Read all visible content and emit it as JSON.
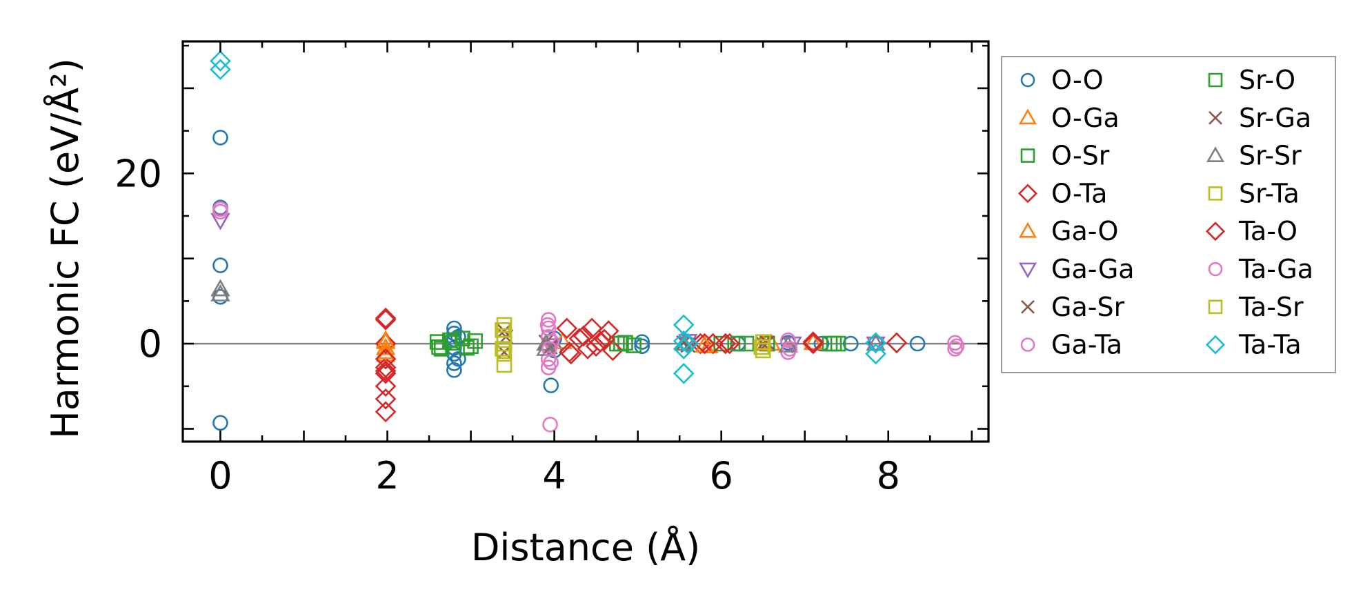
{
  "chart_data": {
    "type": "scatter",
    "title": "",
    "xlabel": "Distance (Å)",
    "ylabel": "Harmonic FC (eV/Å²)",
    "xlim": [
      -0.45,
      9.2
    ],
    "ylim": [
      -11.5,
      35.5
    ],
    "xticks": [
      0,
      2,
      4,
      6,
      8
    ],
    "yticks": [
      0,
      20
    ],
    "x_minor_step": 0.5,
    "y_minor_step": 5,
    "grid": false,
    "zero_line": true,
    "legend_position": "outside-right",
    "legend_columns": 2,
    "series": [
      {
        "name": "O-O",
        "marker": "circle",
        "color": "#1f77b4",
        "points": [
          [
            0,
            24.2
          ],
          [
            0,
            16
          ],
          [
            0,
            9.2
          ],
          [
            0,
            5.5
          ],
          [
            0,
            -9.3
          ],
          [
            2.8,
            1.8
          ],
          [
            2.8,
            1.2
          ],
          [
            2.8,
            0.5
          ],
          [
            2.8,
            -0.5
          ],
          [
            2.8,
            -1.2
          ],
          [
            2.8,
            -2.3
          ],
          [
            2.8,
            -3.1
          ],
          [
            2.85,
            0.8
          ],
          [
            2.85,
            -1.8
          ],
          [
            3.96,
            -4.9
          ],
          [
            4.0,
            0.6
          ],
          [
            4.0,
            -0.8
          ],
          [
            5.05,
            0.2
          ],
          [
            5.05,
            -0.3
          ],
          [
            5.6,
            0
          ],
          [
            6.2,
            0
          ],
          [
            6.8,
            0.1
          ],
          [
            7.2,
            0
          ],
          [
            7.55,
            0
          ],
          [
            7.85,
            0
          ],
          [
            8.35,
            0
          ]
        ]
      },
      {
        "name": "O-Ga",
        "marker": "triangle-up",
        "color": "#ff7f0e",
        "points": [
          [
            1.98,
            0.4
          ],
          [
            1.98,
            -0.5
          ],
          [
            1.98,
            -1.3
          ],
          [
            4.1,
            0.2
          ],
          [
            5.85,
            -0.3
          ],
          [
            6.6,
            0
          ],
          [
            7.1,
            0.1
          ]
        ]
      },
      {
        "name": "O-Sr",
        "marker": "square",
        "color": "#2ca02c",
        "points": [
          [
            2.6,
            0.2
          ],
          [
            2.65,
            -0.6
          ],
          [
            2.75,
            0.4
          ],
          [
            2.9,
            0.6
          ],
          [
            3.0,
            -0.3
          ],
          [
            3.05,
            0.3
          ],
          [
            4.75,
            0
          ],
          [
            4.85,
            0.1
          ],
          [
            4.95,
            -0.2
          ],
          [
            6.0,
            0
          ],
          [
            6.3,
            0
          ],
          [
            6.55,
            0
          ],
          [
            7.3,
            0
          ],
          [
            7.4,
            0
          ]
        ]
      },
      {
        "name": "O-Ta",
        "marker": "diamond",
        "color": "#d62728",
        "points": [
          [
            1.98,
            3.0
          ],
          [
            1.98,
            0
          ],
          [
            1.98,
            -2.8
          ],
          [
            1.98,
            -3.2
          ],
          [
            1.98,
            -5
          ],
          [
            1.98,
            -6.5
          ],
          [
            1.98,
            -8
          ],
          [
            4.15,
            1.8
          ],
          [
            4.2,
            -1.2
          ],
          [
            4.3,
            0.6
          ],
          [
            4.4,
            -0.6
          ],
          [
            4.45,
            1.8
          ],
          [
            4.55,
            0.2
          ],
          [
            4.65,
            1.5
          ],
          [
            4.7,
            -0.8
          ],
          [
            5.75,
            0
          ],
          [
            5.9,
            0
          ],
          [
            6.1,
            0
          ],
          [
            7.1,
            0
          ]
        ]
      },
      {
        "name": "Ga-O",
        "marker": "triangle-up",
        "color": "#ff7f0e",
        "points": [
          [
            1.98,
            0.2
          ],
          [
            1.98,
            -1.0
          ],
          [
            5.8,
            -0.2
          ],
          [
            6.5,
            0
          ]
        ]
      },
      {
        "name": "Ga-Ga",
        "marker": "triangle-down",
        "color": "#9467bd",
        "points": [
          [
            0,
            14.5
          ],
          [
            3.95,
            -0.2
          ],
          [
            5.6,
            0.3
          ],
          [
            6.85,
            0
          ],
          [
            7.85,
            0
          ]
        ]
      },
      {
        "name": "Ga-Sr",
        "marker": "x",
        "color": "#8c564b",
        "points": [
          [
            3.4,
            1.5
          ],
          [
            3.4,
            -1.0
          ],
          [
            3.9,
            0.2
          ],
          [
            5.55,
            0.1
          ],
          [
            6.5,
            0
          ]
        ]
      },
      {
        "name": "Ga-Ta",
        "marker": "circle",
        "color": "#e377c2",
        "points": [
          [
            0,
            15.5
          ],
          [
            3.93,
            2.8
          ],
          [
            3.93,
            1.8
          ],
          [
            3.93,
            0.8
          ],
          [
            3.93,
            -1.8
          ],
          [
            3.93,
            -2.8
          ],
          [
            3.95,
            -9.5
          ],
          [
            3.97,
            0.2
          ],
          [
            6.8,
            0.4
          ],
          [
            6.8,
            -1.0
          ],
          [
            8.8,
            0.1
          ],
          [
            8.8,
            -0.6
          ]
        ]
      },
      {
        "name": "Sr-O",
        "marker": "square",
        "color": "#2ca02c",
        "points": [
          [
            2.62,
            -0.4
          ],
          [
            2.78,
            0.1
          ],
          [
            2.95,
            -0.5
          ],
          [
            4.8,
            0
          ],
          [
            6.2,
            0
          ],
          [
            7.35,
            0
          ]
        ]
      },
      {
        "name": "Sr-Ga",
        "marker": "x",
        "color": "#8c564b",
        "points": [
          [
            3.42,
            0.8
          ],
          [
            3.95,
            -0.4
          ],
          [
            5.6,
            -0.2
          ],
          [
            6.55,
            0.1
          ]
        ]
      },
      {
        "name": "Sr-Sr",
        "marker": "triangle-up",
        "color": "#7f7f7f",
        "points": [
          [
            0,
            6.4
          ],
          [
            0,
            5.8
          ],
          [
            3.9,
            0
          ],
          [
            3.9,
            -0.6
          ],
          [
            5.55,
            0
          ],
          [
            6.8,
            -0.2
          ],
          [
            7.85,
            0
          ]
        ]
      },
      {
        "name": "Sr-Ta",
        "marker": "square",
        "color": "#bcbd22",
        "points": [
          [
            3.4,
            2.2
          ],
          [
            3.4,
            0.9
          ],
          [
            3.4,
            0
          ],
          [
            3.4,
            -1.2
          ],
          [
            3.4,
            -2.5
          ],
          [
            6.5,
            0.2
          ],
          [
            6.5,
            -0.8
          ]
        ]
      },
      {
        "name": "Ta-O",
        "marker": "diamond",
        "color": "#d62728",
        "points": [
          [
            1.98,
            2.8
          ],
          [
            1.98,
            -1.8
          ],
          [
            1.98,
            -3.5
          ],
          [
            4.18,
            -1.0
          ],
          [
            4.35,
            0.9
          ],
          [
            4.5,
            -0.3
          ],
          [
            4.6,
            0.5
          ],
          [
            5.8,
            0
          ],
          [
            6.05,
            0
          ],
          [
            7.1,
            0.2
          ],
          [
            8.1,
            0.1
          ]
        ]
      },
      {
        "name": "Ta-Ga",
        "marker": "circle",
        "color": "#e377c2",
        "points": [
          [
            0,
            15.8
          ],
          [
            3.92,
            2.2
          ],
          [
            3.94,
            -0.6
          ],
          [
            3.96,
            -2.2
          ],
          [
            6.82,
            -0.6
          ],
          [
            8.82,
            -0.3
          ]
        ]
      },
      {
        "name": "Ta-Sr",
        "marker": "square",
        "color": "#bcbd22",
        "points": [
          [
            3.38,
            1.6
          ],
          [
            3.38,
            -0.6
          ],
          [
            6.48,
            -0.4
          ]
        ]
      },
      {
        "name": "Ta-Ta",
        "marker": "diamond",
        "color": "#17becf",
        "points": [
          [
            0,
            33.2
          ],
          [
            0,
            32.2
          ],
          [
            5.55,
            2.2
          ],
          [
            5.55,
            0.3
          ],
          [
            5.55,
            -0.6
          ],
          [
            5.55,
            -3.5
          ],
          [
            5.6,
            0
          ],
          [
            7.85,
            0.1
          ],
          [
            7.85,
            -1.2
          ]
        ]
      }
    ]
  }
}
